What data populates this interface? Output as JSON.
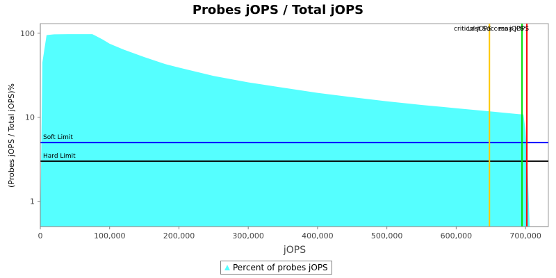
{
  "chart_data": {
    "type": "area",
    "title": "Probes jOPS / Total jOPS",
    "xlabel": "jOPS",
    "ylabel": "(Probes jOPS / Total jOPS)%",
    "yscale": "log",
    "xlim": [
      0,
      733000
    ],
    "ylim": [
      0.5,
      130
    ],
    "x_ticks": [
      0,
      100000,
      200000,
      300000,
      400000,
      500000,
      600000,
      700000
    ],
    "x_tick_labels": [
      "0",
      "100,000",
      "200,000",
      "300,000",
      "400,000",
      "500,000",
      "600,000",
      "700,000"
    ],
    "y_ticks": [
      1,
      10,
      100
    ],
    "y_tick_labels": [
      "1",
      "10",
      "100"
    ],
    "grid": false,
    "legend_position": "bottom",
    "series": [
      {
        "name": "Percent of probes jOPS",
        "color": "#55ffff",
        "x": [
          0,
          3000,
          9000,
          20000,
          40000,
          60000,
          75000,
          80000,
          90000,
          100000,
          120000,
          150000,
          180000,
          200000,
          250000,
          300000,
          350000,
          400000,
          450000,
          500000,
          550000,
          600000,
          650000,
          690000,
          697000,
          700000,
          703000,
          706000
        ],
        "values": [
          0.5,
          45,
          95,
          97,
          97.5,
          97.5,
          97.5,
          93,
          84,
          75,
          64,
          52,
          43,
          39,
          31,
          26,
          22.5,
          19.5,
          17.3,
          15.5,
          14,
          12.8,
          11.7,
          10.9,
          10.8,
          7,
          2.5,
          0.5
        ]
      }
    ],
    "markers": [
      {
        "label": "critical-jOPS",
        "x": 648000,
        "color": "#ffc800"
      },
      {
        "label": "Last Success jOPS",
        "x": 695000,
        "color": "#00dd00"
      },
      {
        "label": "max-jOPS",
        "x": 702000,
        "color": "#ff0000"
      }
    ],
    "limits": [
      {
        "label": "Soft Limit",
        "y": 5,
        "color": "#0000ff"
      },
      {
        "label": "Hard Limit",
        "y": 3,
        "color": "#000000"
      }
    ]
  }
}
